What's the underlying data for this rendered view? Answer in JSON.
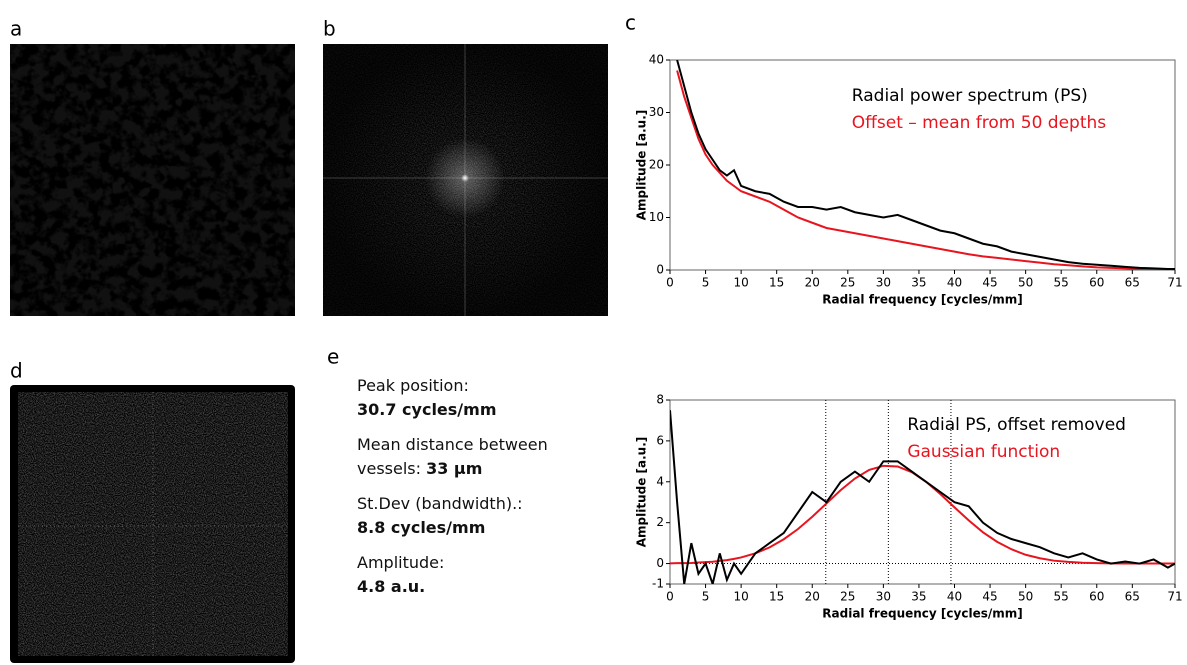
{
  "panels": [
    "a",
    "b",
    "c",
    "d",
    "e"
  ],
  "stats": [
    {
      "label": "Peak position:",
      "value": "30.7 cycles/mm"
    },
    {
      "label": "Mean distance between vessels:",
      "value": "33  µm"
    },
    {
      "label": "St.Dev (bandwidth).:",
      "value": "8.8 cycles/mm"
    },
    {
      "label": "Amplitude:",
      "value": "4.8 a.u."
    }
  ],
  "chart_data": [
    {
      "type": "line",
      "xlabel": "Radial frequency [cycles/mm]",
      "ylabel": "Amplitude [a.u.]",
      "legend": "top-right",
      "xlim": [
        0,
        71
      ],
      "xticks": [
        0,
        5,
        10,
        15,
        20,
        25,
        30,
        35,
        40,
        45,
        50,
        55,
        60,
        65,
        71
      ],
      "ylim": [
        0,
        40
      ],
      "yticks": [
        0,
        10,
        20,
        30,
        40
      ],
      "x": [
        1,
        2,
        3,
        4,
        5,
        6,
        7,
        8,
        9,
        10,
        12,
        14,
        16,
        18,
        20,
        22,
        24,
        26,
        28,
        30,
        32,
        34,
        36,
        38,
        40,
        42,
        44,
        46,
        48,
        50,
        52,
        54,
        56,
        58,
        60,
        62,
        64,
        66,
        68,
        70,
        71
      ],
      "series": [
        {
          "name": "Radial power spectrum (PS)",
          "color": "#000000",
          "values": [
            40,
            35,
            30,
            26,
            23,
            21,
            19,
            18,
            19,
            16,
            15,
            14.5,
            13,
            12,
            12,
            11.5,
            12,
            11,
            10.5,
            10,
            10.5,
            9.5,
            8.5,
            7.5,
            7,
            6,
            5,
            4.5,
            3.5,
            3,
            2.5,
            2,
            1.5,
            1.2,
            1,
            0.8,
            0.6,
            0.4,
            0.3,
            0.2,
            0.2
          ]
        },
        {
          "name": "Offset – mean from 50 depths",
          "color": "#e8141e",
          "values": [
            38,
            33,
            29,
            25,
            22,
            20,
            18.5,
            17,
            16,
            15,
            14,
            13,
            11.5,
            10,
            9,
            8,
            7.5,
            7,
            6.5,
            6,
            5.5,
            5,
            4.5,
            4,
            3.5,
            3,
            2.6,
            2.3,
            2,
            1.7,
            1.4,
            1.1,
            0.9,
            0.7,
            0.5,
            0.4,
            0.3,
            0.2,
            0.1,
            0.1,
            0.1
          ]
        }
      ]
    },
    {
      "type": "line",
      "xlabel": "Radial frequency [cycles/mm]",
      "ylabel": "Amplitude [a.u.]",
      "legend": "top-right",
      "xlim": [
        0,
        71
      ],
      "xticks": [
        0,
        5,
        10,
        15,
        20,
        25,
        30,
        35,
        40,
        45,
        50,
        55,
        60,
        65,
        71
      ],
      "ylim": [
        -1,
        8
      ],
      "yticks": [
        -1,
        0,
        2,
        4,
        6,
        8
      ],
      "vlines": [
        21.9,
        30.7,
        39.5
      ],
      "hline": 0,
      "x": [
        0,
        1,
        2,
        3,
        4,
        5,
        6,
        7,
        8,
        9,
        10,
        12,
        14,
        16,
        18,
        20,
        22,
        24,
        26,
        28,
        30,
        32,
        34,
        36,
        38,
        40,
        42,
        44,
        46,
        48,
        50,
        52,
        54,
        56,
        58,
        60,
        62,
        64,
        66,
        68,
        70,
        71
      ],
      "series": [
        {
          "name": "Radial PS, offset removed",
          "color": "#000000",
          "values": [
            7.5,
            3,
            -1,
            1,
            -0.5,
            0,
            -1,
            0.5,
            -0.8,
            0,
            -0.5,
            0.5,
            1,
            1.5,
            2.5,
            3.5,
            3,
            4,
            4.5,
            4,
            5,
            5,
            4.5,
            4,
            3.5,
            3,
            2.8,
            2,
            1.5,
            1.2,
            1,
            0.8,
            0.5,
            0.3,
            0.5,
            0.2,
            0,
            0.1,
            0,
            0.2,
            -0.2,
            0
          ]
        },
        {
          "name": "Gaussian function",
          "color": "#e8141e",
          "values": [
            0.01,
            0.02,
            0.02,
            0.03,
            0.05,
            0.07,
            0.09,
            0.13,
            0.17,
            0.23,
            0.3,
            0.5,
            0.79,
            1.19,
            1.69,
            2.29,
            2.94,
            3.59,
            4.16,
            4.58,
            4.78,
            4.75,
            4.47,
            4,
            3.4,
            2.75,
            2.11,
            1.53,
            1.06,
            0.7,
            0.43,
            0.26,
            0.14,
            0.08,
            0.04,
            0.02,
            0.01,
            0,
            0,
            0,
            0,
            0
          ]
        }
      ]
    }
  ]
}
